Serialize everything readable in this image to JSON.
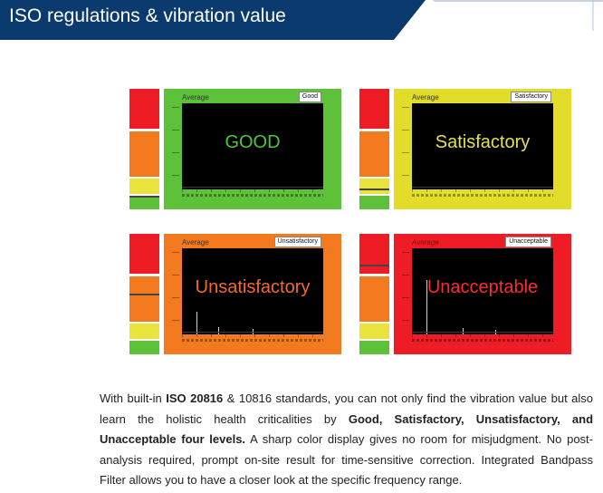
{
  "header": {
    "title": "ISO regulations & vibration value",
    "colors": {
      "bar": "#0b3a6f",
      "accent": "#a9b7c8"
    }
  },
  "panels": [
    {
      "average_label": "Average",
      "badge": "Good",
      "big_text": "GOOD",
      "text_color": "#48c83a",
      "frame_color": "#5dc239",
      "level_marker": "green"
    },
    {
      "average_label": "Average",
      "badge": "Satisfactory",
      "big_text": "Satisfactory",
      "text_color": "#e6e04a",
      "frame_color": "#e2dc2a",
      "level_marker": "yellow"
    },
    {
      "average_label": "Average",
      "badge": "Unsatisfactory",
      "big_text": "Unsatisfactory",
      "text_color": "#f36a26",
      "frame_color": "#f47a20",
      "level_marker": "orange"
    },
    {
      "average_label": "Average",
      "badge": "Unacceptable",
      "big_text": "Unacceptable",
      "text_color": "#ff2a2a",
      "frame_color": "#ee1c24",
      "level_marker": "red"
    }
  ],
  "description": {
    "p1": "With built-in ",
    "b1": "ISO 20816",
    "p2": " & 10816 standards, you can not only find the vibration value but also learn the holistic health criticalities by ",
    "b2": "Good, Satisfactory, Unsatisfactory, and Unacceptable four levels.",
    "p3": " A sharp color display gives no room for misjudgment. No post-analysis required, prompt on-site result for time-sensitive correction. Integrated Bandpass Filter allows you to have a closer look at the specific frequency range."
  }
}
